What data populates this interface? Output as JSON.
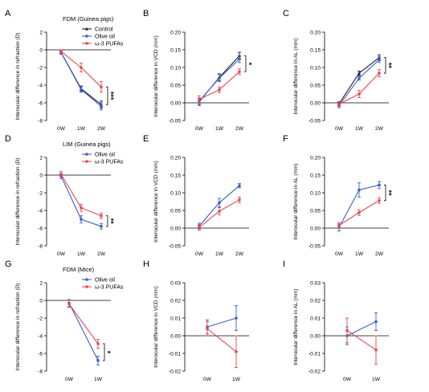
{
  "colors": {
    "control": "#222222",
    "olive": "#3a5fcd",
    "omega": "#e8474f"
  },
  "chart_data": [
    {
      "letter": "A",
      "type": "line",
      "title": "FDM (Guinea pigs)",
      "ylabel": "Interocular difference in refraction (D)",
      "categories": [
        "0W",
        "1W",
        "2W"
      ],
      "ylim": [
        -8,
        2
      ],
      "yticks": [
        "-8",
        "-6",
        "-4",
        "-2",
        "0",
        "2"
      ],
      "legend": "top-right",
      "series": [
        {
          "name": "Control",
          "color_key": "control",
          "values": [
            -0.3,
            -4.4,
            -6.2
          ],
          "err": [
            0.2,
            0.3,
            0.4
          ]
        },
        {
          "name": "Olive oil",
          "color_key": "olive",
          "values": [
            -0.3,
            -4.5,
            -6.4
          ],
          "err": [
            0.2,
            0.3,
            0.4
          ]
        },
        {
          "name": "ω-3 PUFAs",
          "color_key": "omega",
          "values": [
            -0.2,
            -2.0,
            -4.2
          ],
          "err": [
            0.2,
            0.5,
            0.6
          ]
        }
      ],
      "significance": [
        {
          "label": "***",
          "between": [
            -6.2,
            -4.2
          ]
        }
      ]
    },
    {
      "letter": "B",
      "type": "line",
      "title": "",
      "ylabel": "Interocular difference in VCD (mm)",
      "categories": [
        "0W",
        "1W",
        "2W"
      ],
      "ylim": [
        -0.05,
        0.2
      ],
      "yticks": [
        "-0.05",
        "0.00",
        "0.05",
        "0.10",
        "0.15",
        "0.20"
      ],
      "series": [
        {
          "name": "",
          "color_key": "control",
          "values": [
            0.003,
            0.072,
            0.133
          ],
          "err": [
            0.01,
            0.01,
            0.01
          ]
        },
        {
          "name": "",
          "color_key": "olive",
          "values": [
            0.005,
            0.07,
            0.124
          ],
          "err": [
            0.008,
            0.01,
            0.01
          ]
        },
        {
          "name": "",
          "color_key": "omega",
          "values": [
            0.01,
            0.037,
            0.088
          ],
          "err": [
            0.01,
            0.008,
            0.008
          ]
        }
      ],
      "significance": [
        {
          "label": "*",
          "between": [
            0.133,
            0.088
          ]
        }
      ]
    },
    {
      "letter": "C",
      "type": "line",
      "title": "",
      "ylabel": "Interocular difference in AL (mm)",
      "categories": [
        "0W",
        "1W",
        "2W"
      ],
      "ylim": [
        -0.05,
        0.2
      ],
      "yticks": [
        "-0.05",
        "0.00",
        "0.05",
        "0.10",
        "0.15",
        "0.20"
      ],
      "series": [
        {
          "name": "",
          "color_key": "control",
          "values": [
            -0.003,
            0.084,
            0.128
          ],
          "err": [
            0.006,
            0.006,
            0.008
          ]
        },
        {
          "name": "",
          "color_key": "olive",
          "values": [
            -0.008,
            0.07,
            0.122
          ],
          "err": [
            0.006,
            0.006,
            0.008
          ]
        },
        {
          "name": "",
          "color_key": "omega",
          "values": [
            -0.004,
            0.025,
            0.084
          ],
          "err": [
            0.006,
            0.01,
            0.01
          ]
        }
      ],
      "significance": [
        {
          "label": "**",
          "between": [
            0.128,
            0.084
          ]
        }
      ]
    },
    {
      "letter": "D",
      "type": "line",
      "title": "LIM (Guinea pigs)",
      "ylabel": "Interocular difference in refraction (D)",
      "categories": [
        "0W",
        "1W",
        "2W"
      ],
      "ylim": [
        -8,
        2
      ],
      "yticks": [
        "-8",
        "-6",
        "-4",
        "-2",
        "0",
        "2"
      ],
      "legend": "top-right",
      "series": [
        {
          "name": "Olive oil",
          "color_key": "olive",
          "values": [
            -0.1,
            -5.0,
            -5.8
          ],
          "err": [
            0.3,
            0.4,
            0.3
          ]
        },
        {
          "name": "ω-3 PUFAs",
          "color_key": "omega",
          "values": [
            0.1,
            -3.7,
            -4.6
          ],
          "err": [
            0.3,
            0.4,
            0.3
          ]
        }
      ],
      "significance": [
        {
          "label": "**",
          "between": [
            -5.8,
            -4.6
          ]
        }
      ]
    },
    {
      "letter": "E",
      "type": "line",
      "title": "",
      "ylabel": "Interocular difference in VCD (mm)",
      "categories": [
        "0W",
        "1W",
        "2W"
      ],
      "ylim": [
        -0.05,
        0.2
      ],
      "yticks": [
        "-0.05",
        "0.00",
        "0.05",
        "0.10",
        "0.15",
        "0.20"
      ],
      "series": [
        {
          "name": "",
          "color_key": "olive",
          "values": [
            0.006,
            0.072,
            0.12
          ],
          "err": [
            0.008,
            0.012,
            0.006
          ]
        },
        {
          "name": "",
          "color_key": "omega",
          "values": [
            0.002,
            0.048,
            0.08
          ],
          "err": [
            0.008,
            0.01,
            0.008
          ]
        }
      ],
      "significance": []
    },
    {
      "letter": "F",
      "type": "line",
      "title": "",
      "ylabel": "Interocular difference in AL (mm)",
      "categories": [
        "0W",
        "1W",
        "2W"
      ],
      "ylim": [
        -0.05,
        0.2
      ],
      "yticks": [
        "-0.05",
        "0.00",
        "0.05",
        "0.10",
        "0.15",
        "0.20"
      ],
      "series": [
        {
          "name": "",
          "color_key": "olive",
          "values": [
            0.002,
            0.108,
            0.122
          ],
          "err": [
            0.01,
            0.02,
            0.01
          ]
        },
        {
          "name": "",
          "color_key": "omega",
          "values": [
            0.008,
            0.044,
            0.078
          ],
          "err": [
            0.008,
            0.008,
            0.008
          ]
        }
      ],
      "significance": [
        {
          "label": "**",
          "between": [
            0.122,
            0.078
          ]
        }
      ]
    },
    {
      "letter": "G",
      "type": "line",
      "title": "FDM (Mice)",
      "ylabel": "Interocular difference in refraction (D)",
      "categories": [
        "0W",
        "1W"
      ],
      "ylim": [
        -8,
        2
      ],
      "yticks": [
        "-8",
        "-6",
        "-4",
        "-2",
        "0",
        "2"
      ],
      "legend": "top-right",
      "series": [
        {
          "name": "Olive oil",
          "color_key": "olive",
          "values": [
            -0.3,
            -6.8
          ],
          "err": [
            0.4,
            0.5
          ]
        },
        {
          "name": "ω-3 PUFAs",
          "color_key": "omega",
          "values": [
            -0.4,
            -4.9
          ],
          "err": [
            0.4,
            0.5
          ]
        }
      ],
      "significance": [
        {
          "label": "*",
          "between": [
            -6.8,
            -4.9
          ]
        }
      ]
    },
    {
      "letter": "H",
      "type": "line",
      "title": "",
      "ylabel": "Interocular difference in VCD (mm)",
      "categories": [
        "0W",
        "1W"
      ],
      "ylim": [
        -0.02,
        0.03
      ],
      "yticks": [
        "-0.02",
        "-0.01",
        "0.00",
        "0.01",
        "0.02",
        "0.03"
      ],
      "series": [
        {
          "name": "",
          "color_key": "olive",
          "values": [
            0.005,
            0.01
          ],
          "err": [
            0.004,
            0.007
          ]
        },
        {
          "name": "",
          "color_key": "omega",
          "values": [
            0.004,
            -0.009
          ],
          "err": [
            0.004,
            0.009
          ]
        }
      ],
      "significance": []
    },
    {
      "letter": "I",
      "type": "line",
      "title": "",
      "ylabel": "Interocular difference in AL (mm)",
      "categories": [
        "0W",
        "1W"
      ],
      "ylim": [
        -0.02,
        0.03
      ],
      "yticks": [
        "-0.02",
        "-0.01",
        "0.00",
        "0.01",
        "0.02",
        "0.03"
      ],
      "series": [
        {
          "name": "",
          "color_key": "olive",
          "values": [
            0.0,
            0.008
          ],
          "err": [
            0.005,
            0.005
          ]
        },
        {
          "name": "",
          "color_key": "omega",
          "values": [
            0.003,
            -0.008
          ],
          "err": [
            0.007,
            0.008
          ]
        }
      ],
      "significance": []
    }
  ]
}
